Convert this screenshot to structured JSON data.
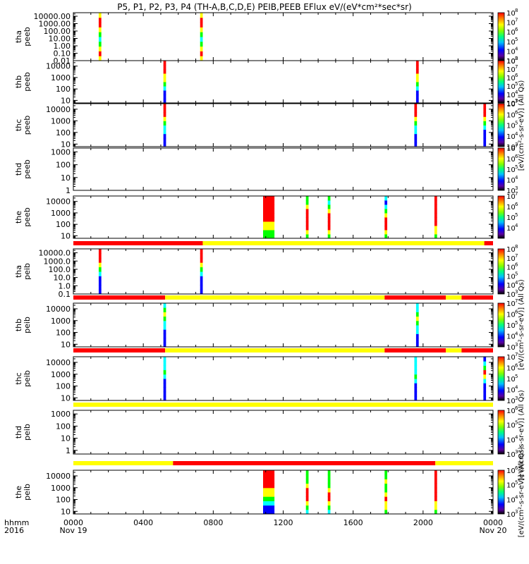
{
  "title": "P5, P1, P2, P3, P4 (TH-A,B,C,D,E) PEIB,PEEB EFlux eV/(eV*cm²*sec*sr)",
  "time_axis": {
    "row_label": "hhmm",
    "year_label": "2016",
    "ticks": [
      {
        "hour": 0,
        "label": "0000",
        "date": "Nov 19"
      },
      {
        "hour": 4,
        "label": "0400",
        "date": ""
      },
      {
        "hour": 8,
        "label": "0800",
        "date": ""
      },
      {
        "hour": 12,
        "label": "1200",
        "date": ""
      },
      {
        "hour": 16,
        "label": "1600",
        "date": ""
      },
      {
        "hour": 20,
        "label": "2000",
        "date": ""
      },
      {
        "hour": 24,
        "label": "0000",
        "date": "Nov 20"
      }
    ]
  },
  "colors": {
    "red": "#ff0000",
    "yellow": "#ffff00",
    "green": "#00ff00",
    "cyan": "#00ffff",
    "blue": "#0000ff",
    "black": "#000000"
  },
  "colorbar_labels": [
    "[eV/(cm²-s-sr-eV)] (All Qs)",
    "[eV/(cm²-s-sr-eV)] (All Qs)",
    "[eV/(cm²-s-sr-eV)] (All Qs)",
    "[eV/(cm²-s-sr-eV)] (All Qs)"
  ],
  "chart_data": {
    "type": "heatmap",
    "x_unit": "hours since 2016-11-19 00:00 UT",
    "xlim": [
      0,
      24
    ],
    "panels": [
      {
        "probe": "tha",
        "product": "peeb",
        "scale": "log",
        "ylim": [
          0.01,
          30000
        ],
        "yticks": [
          {
            "v": 10000,
            "l": "10000.00"
          },
          {
            "v": 1000,
            "l": "1000.00"
          },
          {
            "v": 100,
            "l": "100.00"
          },
          {
            "v": 10,
            "l": "10.00"
          },
          {
            "v": 1,
            "l": "1.00"
          },
          {
            "v": 0.1,
            "l": "0.10"
          },
          {
            "v": 0.01,
            "l": "0.01"
          }
        ],
        "colorbar": {
          "exp_min": 3,
          "exp_max": 8,
          "labels": [
            8,
            7,
            6,
            5,
            4,
            3
          ]
        },
        "bursts": [
          {
            "t0": 1.45,
            "t1": 1.6,
            "colors": [
              "yellow",
              "red",
              "yellow",
              "green",
              "cyan",
              "green",
              "yellow",
              "red",
              "red",
              "yellow"
            ]
          },
          {
            "t0": 7.25,
            "t1": 7.4,
            "colors": [
              "yellow",
              "red",
              "yellow",
              "green",
              "cyan",
              "green",
              "yellow",
              "red",
              "red",
              "yellow"
            ]
          }
        ]
      },
      {
        "probe": "thb",
        "product": "peeb",
        "scale": "log",
        "ylim": [
          6,
          30000
        ],
        "yticks": [
          {
            "v": 10000,
            "l": "10000"
          },
          {
            "v": 1000,
            "l": "1000"
          },
          {
            "v": 100,
            "l": "100"
          },
          {
            "v": 10,
            "l": "10"
          }
        ],
        "colorbar": {
          "exp_min": 3,
          "exp_max": 8,
          "labels": [
            8,
            7,
            6,
            5,
            4,
            3
          ]
        },
        "bursts": [
          {
            "t0": 5.15,
            "t1": 5.3,
            "colors": [
              "blue",
              "blue",
              "blue",
              "cyan",
              "green",
              "yellow",
              "yellow",
              "red",
              "red",
              "red"
            ]
          },
          {
            "t0": 19.6,
            "t1": 19.75,
            "colors": [
              "blue",
              "blue",
              "blue",
              "cyan",
              "green",
              "yellow",
              "yellow",
              "red",
              "red",
              "red"
            ]
          }
        ]
      },
      {
        "probe": "thc",
        "product": "peeb",
        "scale": "log",
        "ylim": [
          6,
          30000
        ],
        "yticks": [
          {
            "v": 10000,
            "l": "10000"
          },
          {
            "v": 1000,
            "l": "1000"
          },
          {
            "v": 100,
            "l": "100"
          },
          {
            "v": 10,
            "l": "10"
          }
        ],
        "colorbar": {
          "exp_min": 3,
          "exp_max": 7,
          "labels": [
            7,
            6,
            5,
            4,
            3
          ]
        },
        "bursts": [
          {
            "t0": 5.15,
            "t1": 5.3,
            "colors": [
              "blue",
              "blue",
              "blue",
              "cyan",
              "cyan",
              "green",
              "yellow",
              "red",
              "red",
              "red"
            ]
          },
          {
            "t0": 19.5,
            "t1": 19.65,
            "colors": [
              "blue",
              "blue",
              "blue",
              "cyan",
              "cyan",
              "green",
              "yellow",
              "red",
              "red",
              "red"
            ]
          },
          {
            "t0": 23.45,
            "t1": 23.6,
            "colors": [
              "blue",
              "blue",
              "blue",
              "blue",
              "cyan",
              "green",
              "yellow",
              "red",
              "red",
              "red"
            ]
          }
        ]
      },
      {
        "probe": "thd",
        "product": "peeb",
        "scale": "log",
        "ylim": [
          1,
          2000
        ],
        "yticks": [
          {
            "v": 1000,
            "l": "1000"
          },
          {
            "v": 100,
            "l": "100"
          },
          {
            "v": 10,
            "l": "10"
          },
          {
            "v": 1,
            "l": "1"
          }
        ],
        "colorbar": {
          "exp_min": 3,
          "exp_max": 7,
          "labels": [
            7,
            6,
            5,
            4,
            3
          ]
        },
        "bursts": []
      },
      {
        "probe": "the",
        "product": "peeb",
        "scale": "log",
        "ylim": [
          6,
          30000
        ],
        "yticks": [
          {
            "v": 10000,
            "l": "10000"
          },
          {
            "v": 1000,
            "l": "1000"
          },
          {
            "v": 100,
            "l": "100"
          },
          {
            "v": 10,
            "l": "10"
          }
        ],
        "colorbar": {
          "exp_min": 3,
          "exp_max": 7,
          "labels": [
            7,
            6,
            5,
            4
          ]
        },
        "bursts": [
          {
            "t0": 10.85,
            "t1": 11.5,
            "colors": [
              "green",
              "green",
              "yellow",
              "yellow",
              "red",
              "red",
              "red",
              "red",
              "red",
              "red"
            ]
          },
          {
            "t0": 13.3,
            "t1": 13.45,
            "colors": [
              "green",
              "yellow",
              "red",
              "red",
              "red",
              "red",
              "red",
              "yellow",
              "green",
              "green"
            ]
          },
          {
            "t0": 14.55,
            "t1": 14.7,
            "colors": [
              "green",
              "yellow",
              "red",
              "red",
              "red",
              "red",
              "yellow",
              "green",
              "cyan",
              "green"
            ]
          },
          {
            "t0": 17.8,
            "t1": 17.95,
            "colors": [
              "green",
              "yellow",
              "red",
              "red",
              "red",
              "yellow",
              "green",
              "cyan",
              "blue",
              "cyan"
            ]
          },
          {
            "t0": 20.65,
            "t1": 20.8,
            "colors": [
              "green",
              "yellow",
              "yellow",
              "red",
              "red",
              "red",
              "red",
              "red",
              "red",
              "red"
            ]
          }
        ]
      },
      {
        "probe": "tha",
        "product": "peib",
        "scale": "log",
        "ylim": [
          0.1,
          30000
        ],
        "yticks": [
          {
            "v": 10000,
            "l": "10000.0"
          },
          {
            "v": 1000,
            "l": "1000.0"
          },
          {
            "v": 100,
            "l": "100.0"
          },
          {
            "v": 10,
            "l": "10.0"
          },
          {
            "v": 1,
            "l": "1.0"
          },
          {
            "v": 0.1,
            "l": "0.1"
          }
        ],
        "colorbar": {
          "exp_min": 3,
          "exp_max": 8,
          "labels": [
            8,
            7,
            6,
            5,
            4,
            3
          ]
        },
        "bursts": [
          {
            "t0": 1.45,
            "t1": 1.6,
            "colors": [
              "blue",
              "blue",
              "blue",
              "blue",
              "cyan",
              "green",
              "yellow",
              "red",
              "red",
              "red"
            ]
          },
          {
            "t0": 7.25,
            "t1": 7.4,
            "colors": [
              "blue",
              "blue",
              "blue",
              "blue",
              "cyan",
              "green",
              "yellow",
              "red",
              "red",
              "red"
            ]
          }
        ]
      },
      {
        "probe": "thb",
        "product": "peib",
        "scale": "log",
        "ylim": [
          6,
          30000
        ],
        "yticks": [
          {
            "v": 10000,
            "l": "10000"
          },
          {
            "v": 1000,
            "l": "1000"
          },
          {
            "v": 100,
            "l": "100"
          },
          {
            "v": 10,
            "l": "10"
          }
        ],
        "colorbar": {
          "exp_min": 3,
          "exp_max": 7,
          "labels": [
            7,
            6,
            5,
            4,
            3
          ]
        },
        "bursts": [
          {
            "t0": 5.15,
            "t1": 5.3,
            "colors": [
              "blue",
              "blue",
              "blue",
              "blue",
              "cyan",
              "cyan",
              "green",
              "yellow",
              "green",
              "cyan"
            ]
          },
          {
            "t0": 19.6,
            "t1": 19.75,
            "colors": [
              "blue",
              "blue",
              "blue",
              "cyan",
              "cyan",
              "green",
              "yellow",
              "green",
              "cyan",
              "cyan"
            ]
          }
        ]
      },
      {
        "probe": "thc",
        "product": "peib",
        "scale": "log",
        "ylim": [
          6,
          30000
        ],
        "yticks": [
          {
            "v": 10000,
            "l": "10000"
          },
          {
            "v": 1000,
            "l": "1000"
          },
          {
            "v": 100,
            "l": "100"
          },
          {
            "v": 10,
            "l": "10"
          }
        ],
        "colorbar": {
          "exp_min": 3,
          "exp_max": 7,
          "labels": [
            7,
            6,
            5,
            4,
            3
          ]
        },
        "bursts": [
          {
            "t0": 5.15,
            "t1": 5.3,
            "colors": [
              "blue",
              "blue",
              "blue",
              "blue",
              "blue",
              "cyan",
              "green",
              "cyan",
              "cyan",
              "cyan"
            ]
          },
          {
            "t0": 19.5,
            "t1": 19.65,
            "colors": [
              "blue",
              "blue",
              "blue",
              "blue",
              "cyan",
              "green",
              "cyan",
              "cyan",
              "cyan",
              "cyan"
            ]
          },
          {
            "t0": 23.45,
            "t1": 23.6,
            "colors": [
              "blue",
              "blue",
              "blue",
              "blue",
              "cyan",
              "yellow",
              "red",
              "green",
              "cyan",
              "blue"
            ]
          }
        ]
      },
      {
        "probe": "thd",
        "product": "peib",
        "scale": "log",
        "ylim": [
          0.5,
          2000
        ],
        "yticks": [
          {
            "v": 1000,
            "l": "1000"
          },
          {
            "v": 100,
            "l": "100"
          },
          {
            "v": 10,
            "l": "10"
          },
          {
            "v": 1,
            "l": "1"
          }
        ],
        "colorbar": {
          "exp_min": 3,
          "exp_max": 6,
          "labels": [
            6,
            5,
            4,
            3
          ]
        },
        "bursts": []
      },
      {
        "probe": "the",
        "product": "peib",
        "scale": "log",
        "ylim": [
          6,
          30000
        ],
        "yticks": [
          {
            "v": 10000,
            "l": "10000"
          },
          {
            "v": 1000,
            "l": "1000"
          },
          {
            "v": 100,
            "l": "100"
          },
          {
            "v": 10,
            "l": "10"
          }
        ],
        "colorbar": {
          "exp_min": 3,
          "exp_max": 6,
          "labels": [
            6,
            5,
            4,
            3
          ]
        },
        "bursts": [
          {
            "t0": 10.85,
            "t1": 11.5,
            "colors": [
              "blue",
              "blue",
              "cyan",
              "green",
              "yellow",
              "yellow",
              "red",
              "red",
              "red",
              "red"
            ]
          },
          {
            "t0": 13.3,
            "t1": 13.45,
            "colors": [
              "cyan",
              "green",
              "yellow",
              "red",
              "red",
              "red",
              "yellow",
              "green",
              "green",
              "green"
            ]
          },
          {
            "t0": 14.55,
            "t1": 14.7,
            "colors": [
              "cyan",
              "green",
              "yellow",
              "red",
              "red",
              "yellow",
              "green",
              "green",
              "green",
              "green"
            ]
          },
          {
            "t0": 17.8,
            "t1": 17.95,
            "colors": [
              "green",
              "yellow",
              "yellow",
              "red",
              "yellow",
              "green",
              "green",
              "yellow",
              "green",
              "green"
            ]
          },
          {
            "t0": 20.65,
            "t1": 20.8,
            "colors": [
              "green",
              "yellow",
              "yellow",
              "red",
              "red",
              "red",
              "red",
              "red",
              "red",
              "red"
            ]
          }
        ]
      }
    ],
    "mode_bars": [
      {
        "after_panel": 4,
        "segments": [
          {
            "t0": 0,
            "t1": 7.4,
            "color": "red"
          },
          {
            "t0": 7.4,
            "t1": 23.5,
            "color": "yellow"
          },
          {
            "t0": 23.5,
            "t1": 24,
            "color": "red"
          }
        ]
      },
      {
        "after_panel": 5,
        "segments": [
          {
            "t0": 0,
            "t1": 5.25,
            "color": "red"
          },
          {
            "t0": 5.25,
            "t1": 17.8,
            "color": "yellow"
          },
          {
            "t0": 17.8,
            "t1": 21.3,
            "color": "red"
          },
          {
            "t0": 21.3,
            "t1": 22.2,
            "color": "yellow"
          },
          {
            "t0": 22.2,
            "t1": 24,
            "color": "red"
          }
        ]
      },
      {
        "after_panel": 6,
        "segments": [
          {
            "t0": 0,
            "t1": 5.25,
            "color": "red"
          },
          {
            "t0": 5.25,
            "t1": 17.8,
            "color": "yellow"
          },
          {
            "t0": 17.8,
            "t1": 21.3,
            "color": "red"
          },
          {
            "t0": 21.3,
            "t1": 22.2,
            "color": "yellow"
          },
          {
            "t0": 22.2,
            "t1": 24,
            "color": "red"
          }
        ]
      },
      {
        "after_panel": 7,
        "segments": [
          {
            "t0": 0,
            "t1": 24,
            "color": "yellow"
          }
        ]
      },
      {
        "after_panel": 8,
        "segments": [
          {
            "t0": 0,
            "t1": 5.7,
            "color": "yellow"
          },
          {
            "t0": 5.7,
            "t1": 20.7,
            "color": "red"
          },
          {
            "t0": 20.7,
            "t1": 24,
            "color": "yellow"
          }
        ]
      }
    ]
  }
}
